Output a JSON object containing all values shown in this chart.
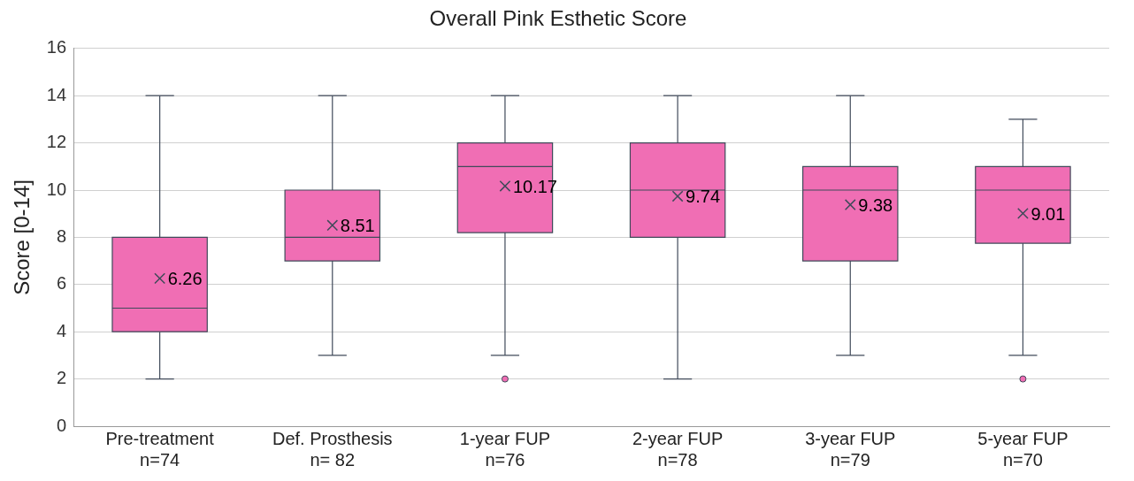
{
  "chart_data": {
    "type": "box",
    "title": "Overall Pink Esthetic Score",
    "ylabel": "Score [0-14]",
    "categories": [
      "Pre-treatment\nn=74",
      "Def. Prosthesis\nn= 82",
      "1-year FUP\nn=76",
      "2-year FUP\nn=78",
      "3-year FUP\nn=79",
      "5-year FUP\nn=70"
    ],
    "boxes": [
      {
        "low": 2,
        "q1": 4,
        "median": 5,
        "q3": 8,
        "high": 14,
        "mean": 6.26
      },
      {
        "low": 3,
        "q1": 7,
        "median": 8,
        "q3": 10,
        "high": 14,
        "mean": 8.51
      },
      {
        "low": 3,
        "q1": 8.2,
        "median": 11,
        "q3": 12,
        "high": 14,
        "mean": 10.17,
        "outliers": [
          2
        ]
      },
      {
        "low": 2,
        "q1": 8,
        "median": 10,
        "q3": 12,
        "high": 14,
        "mean": 9.74
      },
      {
        "low": 3,
        "q1": 7,
        "median": 10,
        "q3": 11,
        "high": 14,
        "mean": 9.38
      },
      {
        "low": 3,
        "q1": 7.75,
        "median": 10,
        "q3": 11,
        "high": 13,
        "mean": 9.01,
        "outliers": [
          2
        ]
      }
    ],
    "value_labels": [
      "6.26",
      "8.51",
      "10.17",
      "9.74",
      "9.38",
      "9.01"
    ],
    "color": "#f06eb4",
    "ylim": [
      0,
      16
    ],
    "yticks": [
      0,
      2,
      4,
      6,
      8,
      10,
      12,
      14,
      16
    ],
    "grid": "y",
    "legend": false,
    "marker": "cross"
  }
}
